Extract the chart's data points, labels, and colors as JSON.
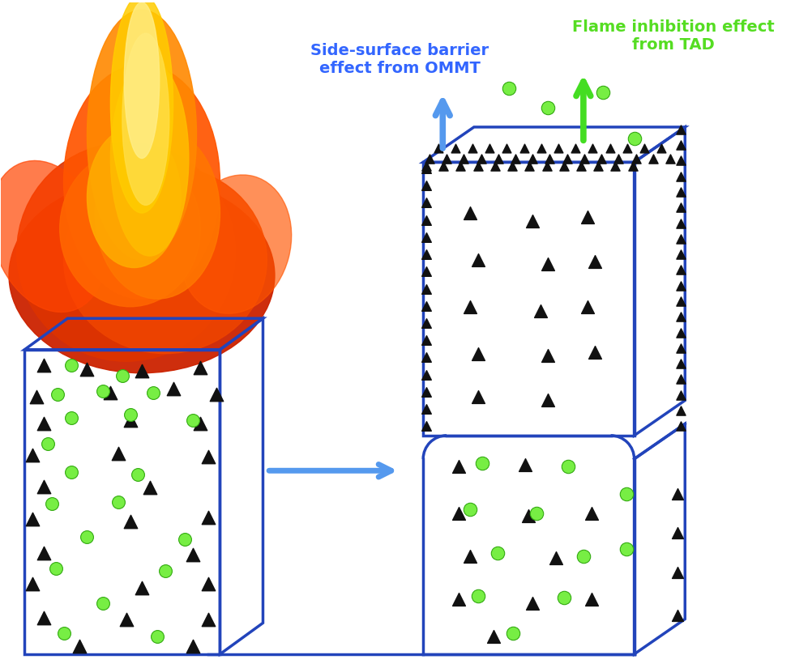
{
  "bg_color": "#ffffff",
  "box_color": "#2244bb",
  "arrow_blue": "#5599ee",
  "arrow_green": "#44dd22",
  "triangle_color": "#111111",
  "sphere_color": "#77ee44",
  "sphere_edge": "#33aa11",
  "text_blue": "#3366ff",
  "text_green": "#55dd22",
  "label_side": "Side-surface barrier\neffect from OMMT",
  "label_flame": "Flame inhibition effect\nfrom TAD",
  "figsize": [
    9.81,
    8.25
  ],
  "dpi": 100
}
